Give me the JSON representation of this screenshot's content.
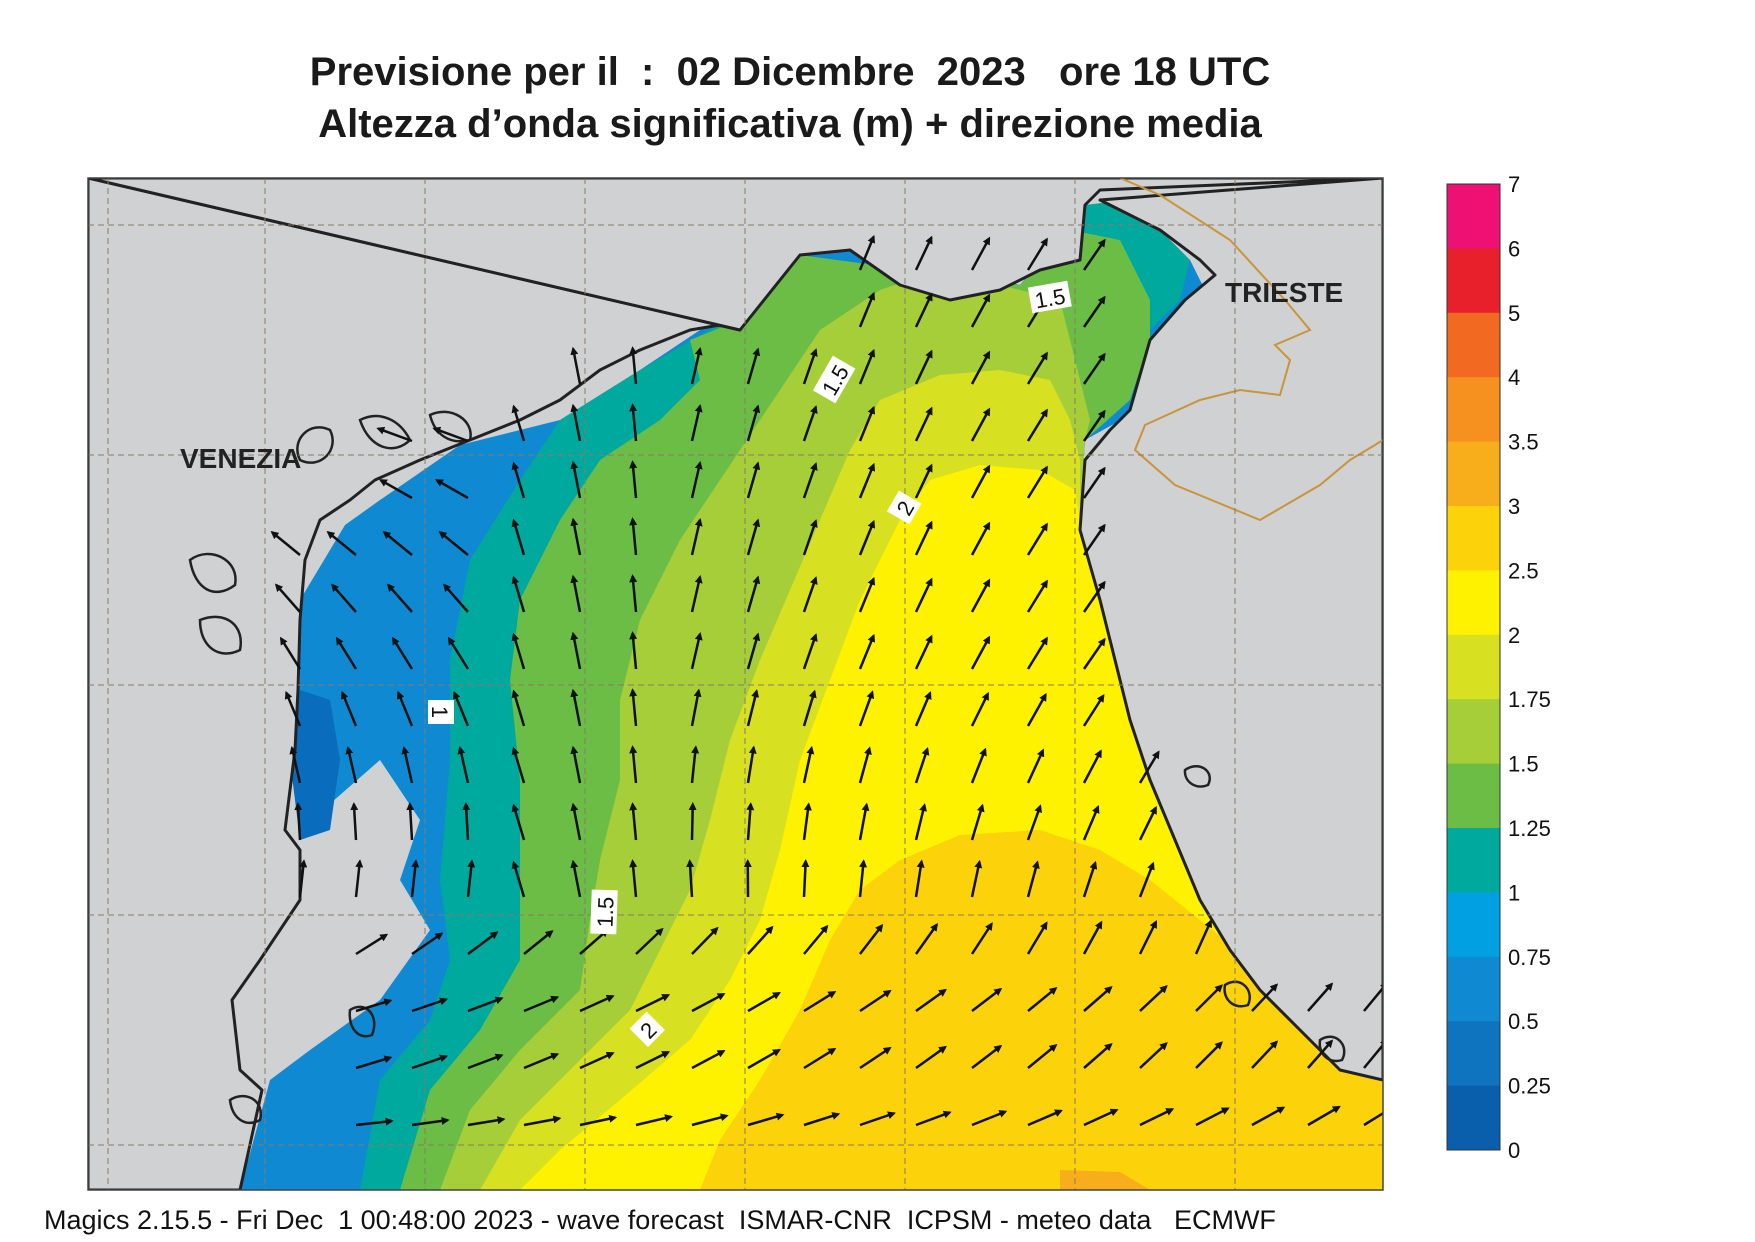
{
  "title": {
    "line1": "Previsione per il  :  02 Dicembre  2023   ore 18 UTC",
    "line2": "Altezza d’onda significativa (m) + direzione media"
  },
  "places": {
    "venezia": "VENEZIA",
    "trieste": "TRIESTE"
  },
  "contour_labels": [
    "1.5",
    "1.5",
    "1.5",
    "2",
    "1",
    "1.5",
    "2"
  ],
  "legend": {
    "ticks": [
      "7",
      "6",
      "5",
      "4",
      "3.5",
      "3",
      "2.5",
      "2",
      "1.75",
      "1.5",
      "1.25",
      "1",
      "0.75",
      "0.5",
      "0.25",
      "0"
    ],
    "colors": [
      "#ee1173",
      "#e8202b",
      "#f26a22",
      "#f6901e",
      "#f8ad1a",
      "#fcd20a",
      "#fff200",
      "#d7e021",
      "#a6ce39",
      "#6cbd45",
      "#00a99d",
      "#00a0e3",
      "#0f8ad2",
      "#0f74c0",
      "#0a5fad"
    ]
  },
  "colors": {
    "land": "#d0d1d3",
    "coast": "#222222",
    "grid": "#8a7a66",
    "border": "#c8953a",
    "sea_low": "#2c7fc9",
    "sea_high": "#fcd20a"
  },
  "footer": "Magics 2.15.5 - Fri Dec  1 00:48:00 2023 - wave forecast  ISMAR-CNR  ICPSM - meteo data   ECMWF"
}
